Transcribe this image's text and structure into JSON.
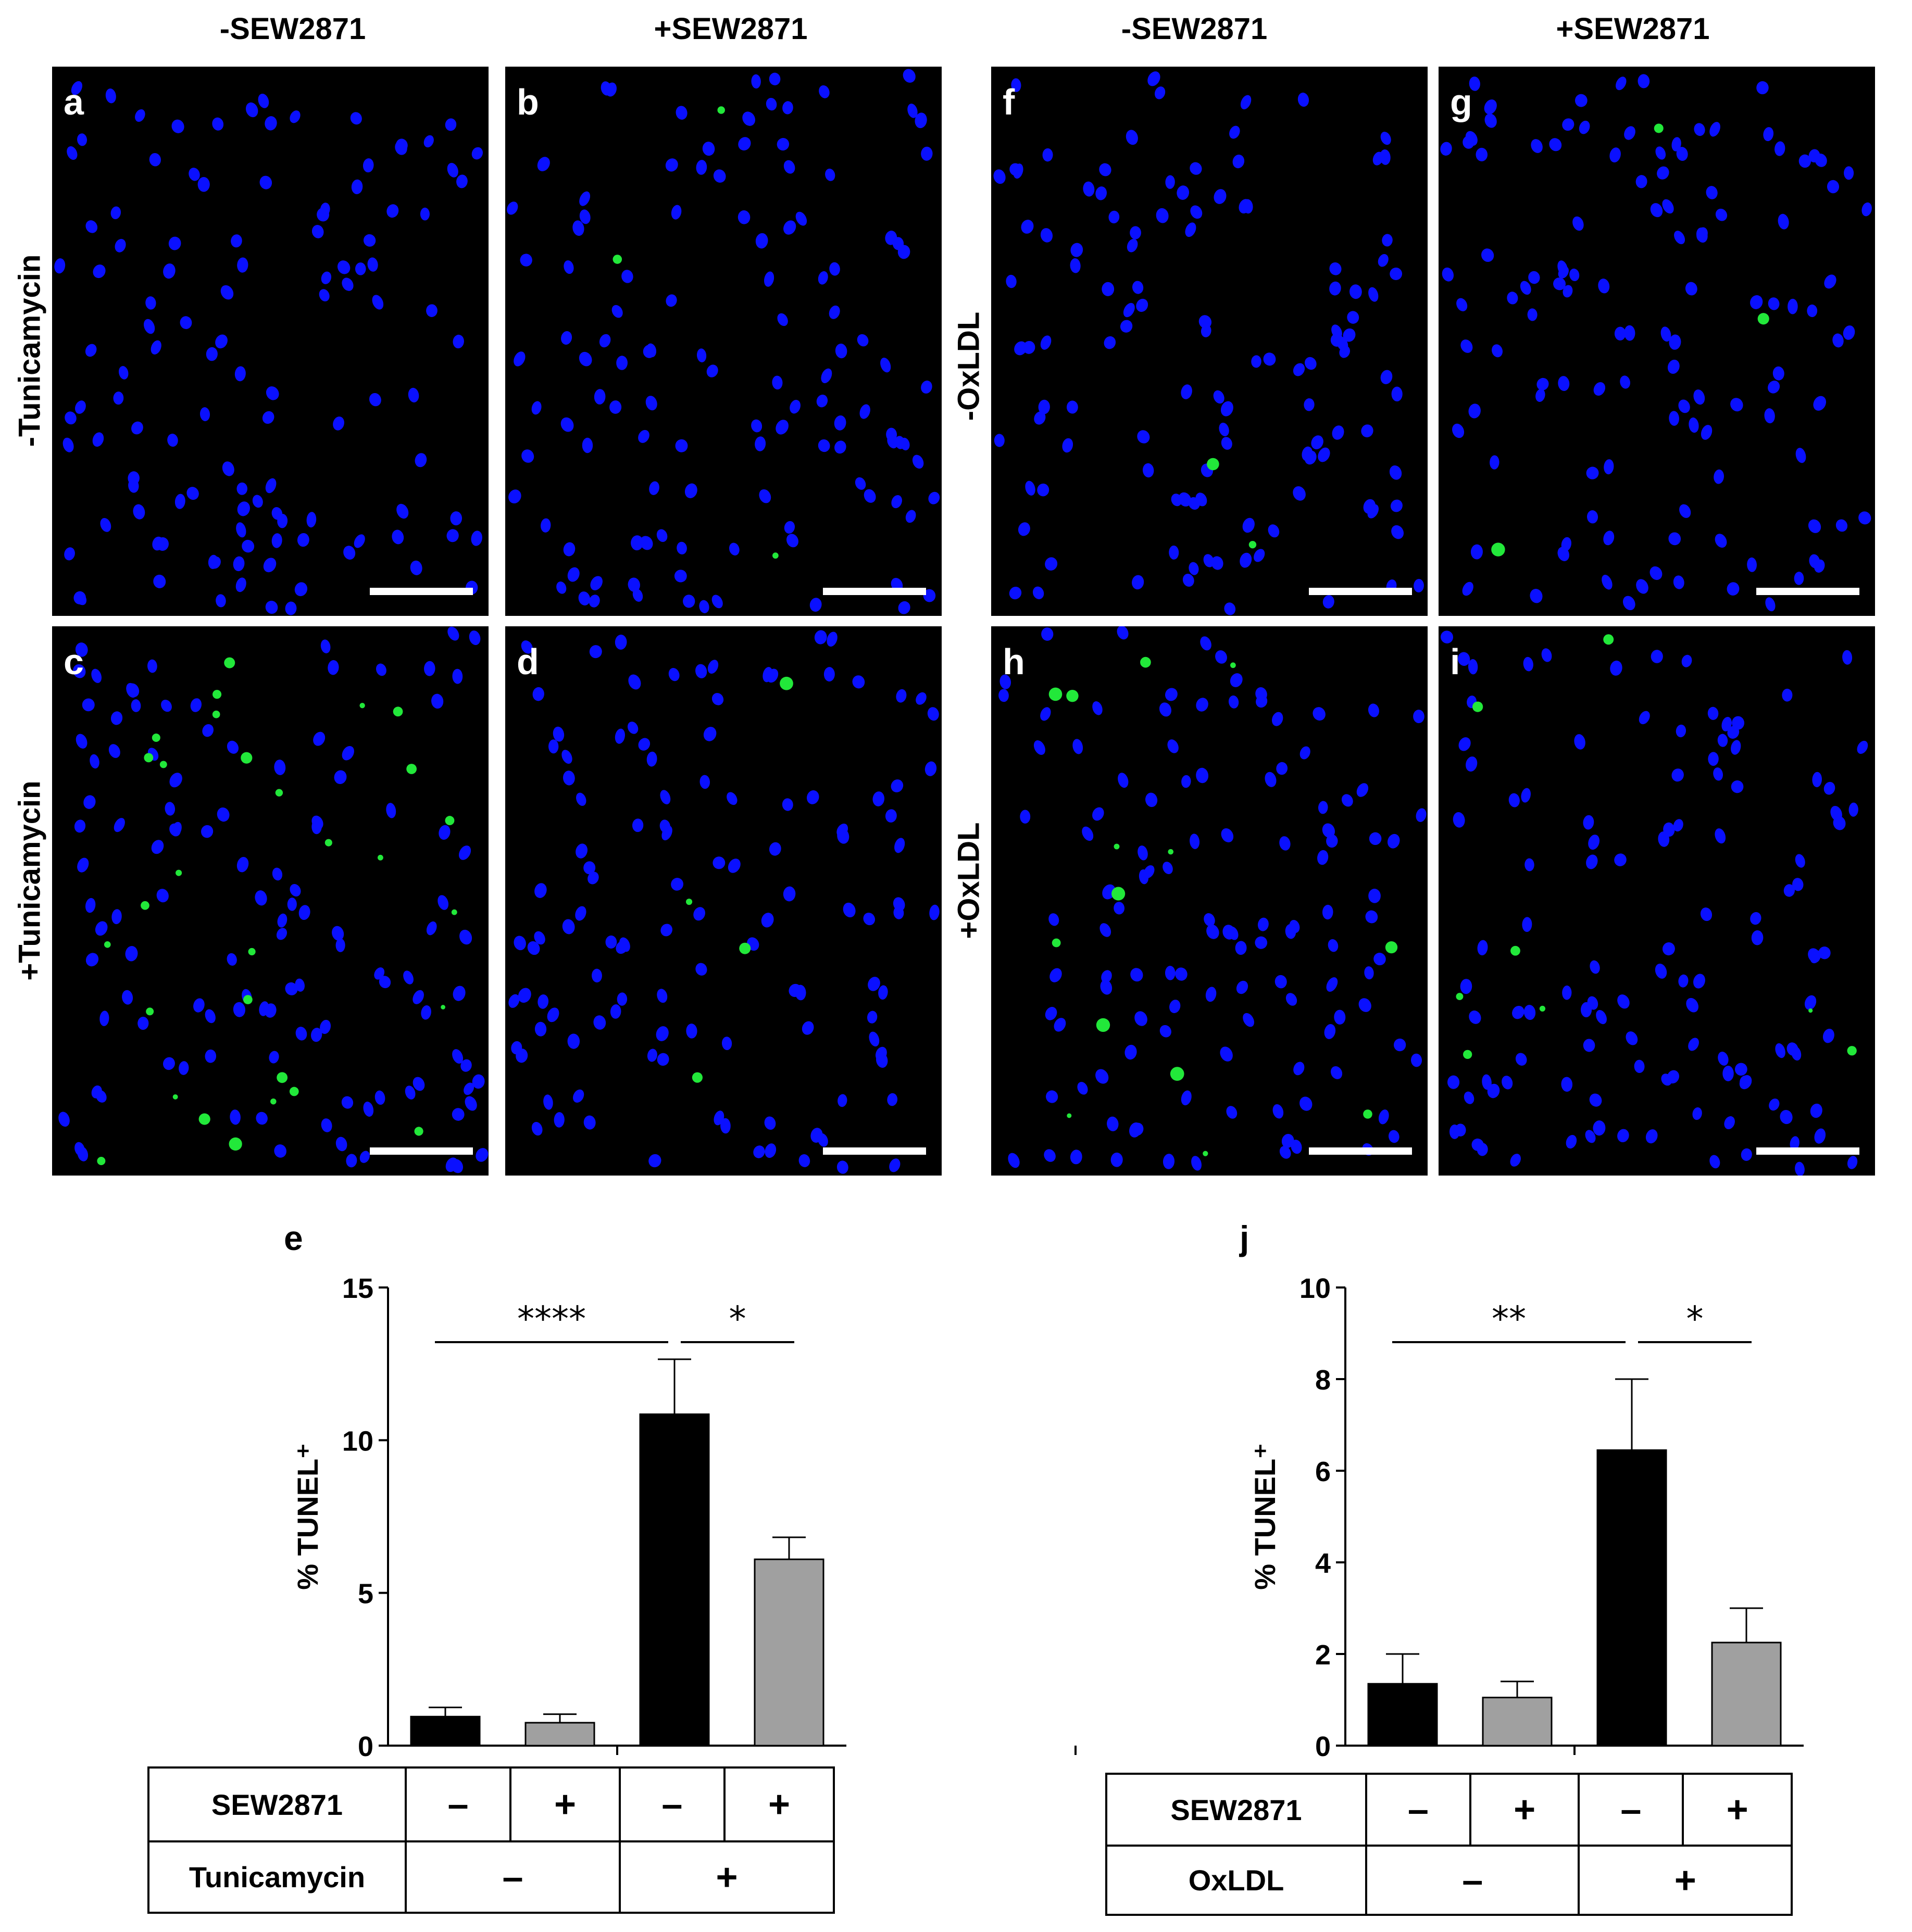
{
  "column_headers": [
    "-SEW2871",
    "+SEW2871",
    "-SEW2871",
    "+SEW2871"
  ],
  "row_headers_left": [
    "-Tunicamycin",
    "+Tunicamycin"
  ],
  "row_headers_right": [
    "-OxLDL",
    "+OxLDL"
  ],
  "panels": [
    {
      "letter": "a",
      "green": 0
    },
    {
      "letter": "b",
      "green": 3
    },
    {
      "letter": "c",
      "green": 30
    },
    {
      "letter": "d",
      "green": 4
    },
    {
      "letter": "f",
      "green": 2
    },
    {
      "letter": "g",
      "green": 3
    },
    {
      "letter": "h",
      "green": 14
    },
    {
      "letter": "i",
      "green": 8
    }
  ],
  "colors": {
    "nuclei": "#0a10ff",
    "tunel": "#22e83a",
    "black_bar": "#000000",
    "gray_bar": "#a0a0a0"
  },
  "chart_data": [
    {
      "letter": "e",
      "type": "bar",
      "ylabel": "% TUNEL⁺",
      "ylim": [
        0,
        15
      ],
      "yticks": [
        "0",
        "5",
        "10",
        "15"
      ],
      "categories": [
        "-SEW2871 -Tunicamycin",
        "+SEW2871 -Tunicamycin",
        "-SEW2871 +Tunicamycin",
        "+SEW2871 +Tunicamycin"
      ],
      "values": [
        0.95,
        0.75,
        10.85,
        6.1
      ],
      "errors": [
        0.3,
        0.28,
        1.8,
        0.72
      ],
      "bar_colors": [
        "black",
        "gray",
        "black",
        "gray"
      ],
      "significance": [
        {
          "from": 0,
          "to": 2,
          "label": "****"
        },
        {
          "from": 2,
          "to": 3,
          "label": "*"
        }
      ],
      "table": {
        "rows": [
          {
            "label": "SEW2871",
            "cells": [
              "–",
              "+",
              "–",
              "+"
            ]
          },
          {
            "label": "Tunicamycin",
            "groups": [
              "–",
              "+"
            ]
          }
        ]
      }
    },
    {
      "letter": "j",
      "type": "bar",
      "ylabel": "% TUNEL⁺",
      "ylim": [
        0,
        10
      ],
      "yticks": [
        "0",
        "2",
        "4",
        "6",
        "8",
        "10"
      ],
      "categories": [
        "-SEW2871 -OxLDL",
        "+SEW2871 -OxLDL",
        "-SEW2871 +OxLDL",
        "+SEW2871 +OxLDL"
      ],
      "values": [
        1.35,
        1.05,
        6.45,
        2.25
      ],
      "errors": [
        0.65,
        0.35,
        1.55,
        0.75
      ],
      "bar_colors": [
        "black",
        "gray",
        "black",
        "gray"
      ],
      "significance": [
        {
          "from": 0,
          "to": 2,
          "label": "**"
        },
        {
          "from": 2,
          "to": 3,
          "label": "*"
        }
      ],
      "table": {
        "rows": [
          {
            "label": "SEW2871",
            "cells": [
              "–",
              "+",
              "–",
              "+"
            ]
          },
          {
            "label": "OxLDL",
            "groups": [
              "–",
              "+"
            ]
          }
        ]
      }
    }
  ]
}
